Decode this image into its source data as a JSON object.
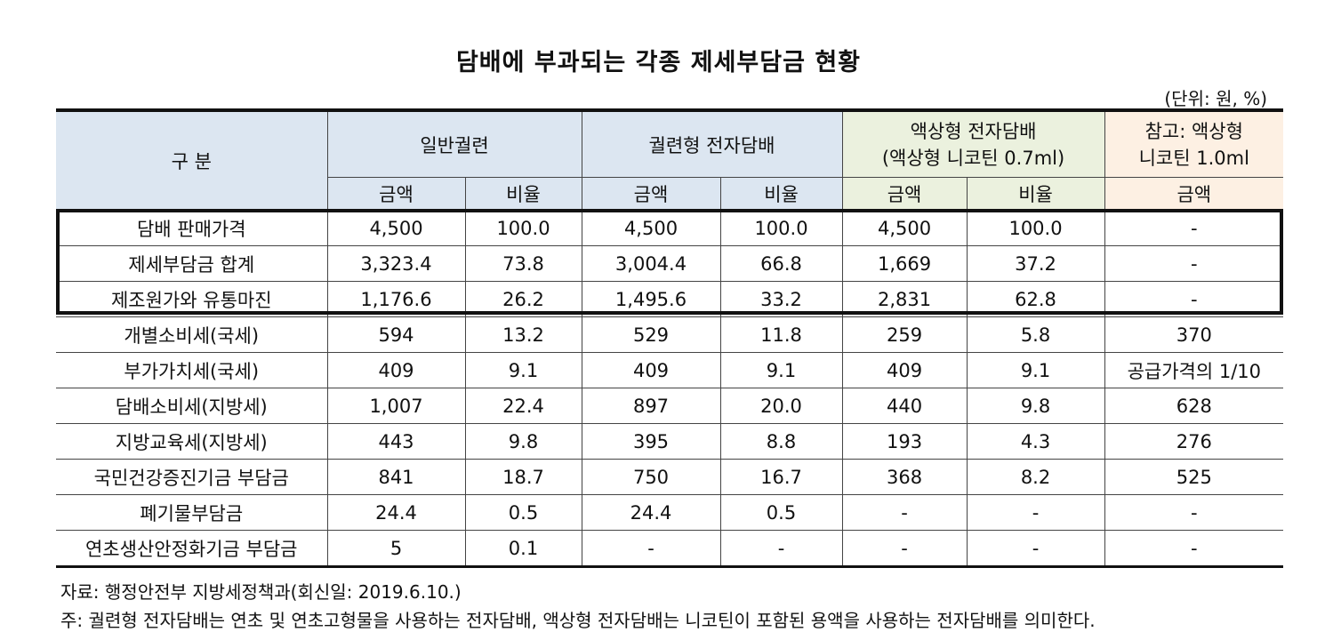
{
  "title": "담배에 부과되는 각종 제세부담금 현황",
  "unit": "(단위: 원, %)",
  "header": {
    "category": "구 분",
    "groups": [
      {
        "line1": "일반궐련",
        "line2": ""
      },
      {
        "line1": "궐련형 전자담배",
        "line2": ""
      },
      {
        "line1": "액상형 전자담배",
        "line2": "(액상형 니코틴 0.7ml)"
      },
      {
        "line1": "참고: 액상형",
        "line2": "니코틴 1.0ml"
      }
    ],
    "sub": [
      "금액",
      "비율",
      "금액",
      "비율",
      "금액",
      "비율",
      "금액"
    ]
  },
  "rows": [
    {
      "label": "담배 판매가격",
      "v": [
        "4,500",
        "100.0",
        "4,500",
        "100.0",
        "4,500",
        "100.0",
        "-"
      ]
    },
    {
      "label": "제세부담금 합계",
      "v": [
        "3,323.4",
        "73.8",
        "3,004.4",
        "66.8",
        "1,669",
        "37.2",
        "-"
      ]
    },
    {
      "label": "제조원가와 유통마진",
      "v": [
        "1,176.6",
        "26.2",
        "1,495.6",
        "33.2",
        "2,831",
        "62.8",
        "-"
      ]
    },
    {
      "label": "개별소비세(국세)",
      "v": [
        "594",
        "13.2",
        "529",
        "11.8",
        "259",
        "5.8",
        "370"
      ]
    },
    {
      "label": "부가가치세(국세)",
      "v": [
        "409",
        "9.1",
        "409",
        "9.1",
        "409",
        "9.1",
        "공급가격의 1/10"
      ]
    },
    {
      "label": "담배소비세(지방세)",
      "v": [
        "1,007",
        "22.4",
        "897",
        "20.0",
        "440",
        "9.8",
        "628"
      ]
    },
    {
      "label": "지방교육세(지방세)",
      "v": [
        "443",
        "9.8",
        "395",
        "8.8",
        "193",
        "4.3",
        "276"
      ]
    },
    {
      "label": "국민건강증진기금 부담금",
      "v": [
        "841",
        "18.7",
        "750",
        "16.7",
        "368",
        "8.2",
        "525"
      ]
    },
    {
      "label": "폐기물부담금",
      "v": [
        "24.4",
        "0.5",
        "24.4",
        "0.5",
        "-",
        "-",
        "-"
      ]
    },
    {
      "label": "연초생산안정화기금 부담금",
      "v": [
        "5",
        "0.1",
        "-",
        "-",
        "-",
        "-",
        "-"
      ]
    }
  ],
  "notes": {
    "source": "자료: 행정안전부 지방세정책과(회신일: 2019.6.10.)",
    "note": "주: 궐련형 전자담배는 연초 및 연초고형물을 사용하는 전자담배, 액상형 전자담배는 니코틴이 포함된 용액을 사용하는 전자담배를 의미한다."
  },
  "colors": {
    "header_blue": "#dce6f1",
    "header_green": "#ebf1de",
    "header_orange": "#fdf0e3"
  }
}
